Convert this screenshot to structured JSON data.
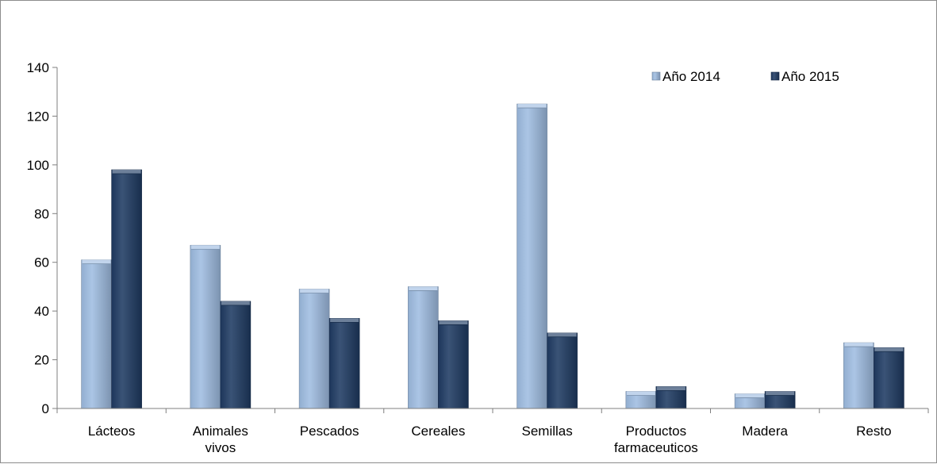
{
  "chart_data": {
    "type": "bar",
    "title": "",
    "xlabel": "",
    "ylabel": "",
    "categories": [
      [
        "Lácteos"
      ],
      [
        "Animales",
        "vivos"
      ],
      [
        "Pescados"
      ],
      [
        "Cereales"
      ],
      [
        "Semillas"
      ],
      [
        "Productos",
        "farmaceuticos"
      ],
      [
        "Madera"
      ],
      [
        "Resto"
      ]
    ],
    "series": [
      {
        "name": "Año 2014",
        "color": "#9fbde2",
        "values": [
          61,
          67,
          49,
          50,
          125,
          7,
          6,
          27
        ]
      },
      {
        "name": "Año 2015",
        "color": "#1f3b63",
        "values": [
          98,
          44,
          37,
          36,
          31,
          9,
          7,
          25
        ]
      }
    ],
    "ylim": [
      0,
      140
    ],
    "yticks": [
      0,
      20,
      40,
      60,
      80,
      100,
      120,
      140
    ],
    "grid": false,
    "legend_position": "top-right",
    "bar_style": "3d"
  }
}
